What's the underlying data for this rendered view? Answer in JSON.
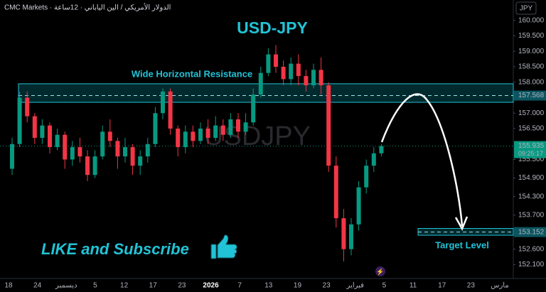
{
  "chart_data": {
    "type": "candlestick",
    "title": "USD-JPY",
    "watermark": "USDJPY",
    "source": "CMC Markets · الدولار الأمريكي / الين الياباني · 12ساعة",
    "currency": "JPY",
    "up_color": "#089981",
    "down_color": "#f23645",
    "open": [
      155.2,
      156.0,
      157.5,
      156.9,
      156.2,
      156.6,
      155.9,
      156.3,
      155.5,
      155.9,
      155.6,
      155.0,
      155.6,
      156.4,
      156.1,
      155.6,
      155.9,
      155.3,
      155.6,
      156.0,
      157.0,
      157.7,
      156.5,
      155.9,
      156.4,
      156.1,
      156.5,
      156.2,
      156.6,
      156.3,
      156.8,
      156.4,
      156.7,
      157.6,
      158.3,
      158.9,
      158.5,
      158.1,
      158.6,
      158.2,
      157.9,
      158.4,
      157.9,
      155.3,
      153.6,
      152.6,
      153.4,
      154.6,
      155.3,
      155.7
    ],
    "high": [
      156.2,
      157.7,
      157.7,
      157.0,
      156.8,
      156.7,
      156.5,
      156.4,
      156.1,
      156.2,
      155.8,
      155.8,
      156.6,
      156.8,
      156.2,
      156.2,
      156.0,
      155.8,
      156.2,
      157.2,
      157.8,
      157.8,
      156.6,
      156.6,
      156.6,
      156.7,
      156.8,
      156.9,
      156.8,
      157.0,
      157.0,
      157.0,
      157.8,
      158.5,
      159.1,
      159.2,
      158.7,
      158.8,
      158.9,
      158.4,
      158.6,
      158.8,
      158.0,
      155.6,
      153.9,
      153.6,
      154.8,
      155.5,
      155.9,
      156.0
    ],
    "low": [
      155.0,
      155.9,
      156.7,
      156.0,
      156.0,
      155.7,
      155.8,
      155.2,
      155.3,
      155.4,
      154.8,
      154.9,
      155.5,
      155.9,
      155.2,
      155.4,
      155.0,
      155.0,
      155.4,
      155.9,
      156.8,
      156.3,
      155.6,
      155.7,
      155.9,
      156.0,
      156.0,
      156.1,
      156.1,
      156.2,
      156.2,
      156.3,
      156.6,
      157.5,
      158.2,
      158.3,
      157.9,
      157.9,
      157.9,
      157.7,
      157.8,
      157.6,
      155.1,
      153.3,
      152.2,
      152.4,
      153.2,
      154.4,
      155.1,
      155.6
    ],
    "close": [
      156.0,
      157.5,
      156.9,
      156.2,
      156.6,
      155.9,
      156.3,
      155.5,
      155.9,
      155.6,
      155.0,
      155.6,
      156.4,
      156.1,
      155.6,
      155.9,
      155.3,
      155.6,
      156.0,
      157.0,
      157.7,
      156.5,
      155.9,
      156.4,
      156.1,
      156.5,
      156.2,
      156.6,
      156.3,
      156.8,
      156.4,
      156.7,
      157.6,
      158.3,
      158.9,
      158.5,
      158.1,
      158.6,
      158.2,
      157.9,
      158.4,
      157.9,
      155.3,
      153.6,
      152.6,
      153.4,
      154.6,
      155.3,
      155.7,
      155.935
    ],
    "x_labels": [
      "18",
      "24",
      "ديسمبر",
      "5",
      "12",
      "17",
      "23",
      "2026",
      "7",
      "13",
      "19",
      "23",
      "فبراير",
      "5",
      "11",
      "17",
      "23",
      "مارس"
    ],
    "ylim": [
      151.65,
      160.66
    ],
    "yticks": [
      {
        "value": 160,
        "label": "160.000"
      },
      {
        "value": 159.5,
        "label": "159.500"
      },
      {
        "value": 159,
        "label": "159.000"
      },
      {
        "value": 158.5,
        "label": "158.500"
      },
      {
        "value": 158,
        "label": "158.000"
      },
      {
        "value": 157,
        "label": "157.000"
      },
      {
        "value": 156.5,
        "label": "156.500"
      },
      {
        "value": 155.5,
        "label": "155.500"
      },
      {
        "value": 154.9,
        "label": "154.900"
      },
      {
        "value": 154.3,
        "label": "154.300"
      },
      {
        "value": 153.7,
        "label": "153.700"
      },
      {
        "value": 152.6,
        "label": "152.600"
      },
      {
        "value": 152.1,
        "label": "152.100"
      }
    ],
    "last_price": 155.935,
    "countdown": "09:25:17",
    "resistance": {
      "label": "Wide Horizontal Resistance",
      "level": 157.568,
      "zone": [
        157.35,
        157.95
      ]
    },
    "target": {
      "label": "Target Level",
      "level": 153.152,
      "zone": [
        153.05,
        153.27
      ]
    },
    "cta": "LIKE and Subscribe"
  }
}
